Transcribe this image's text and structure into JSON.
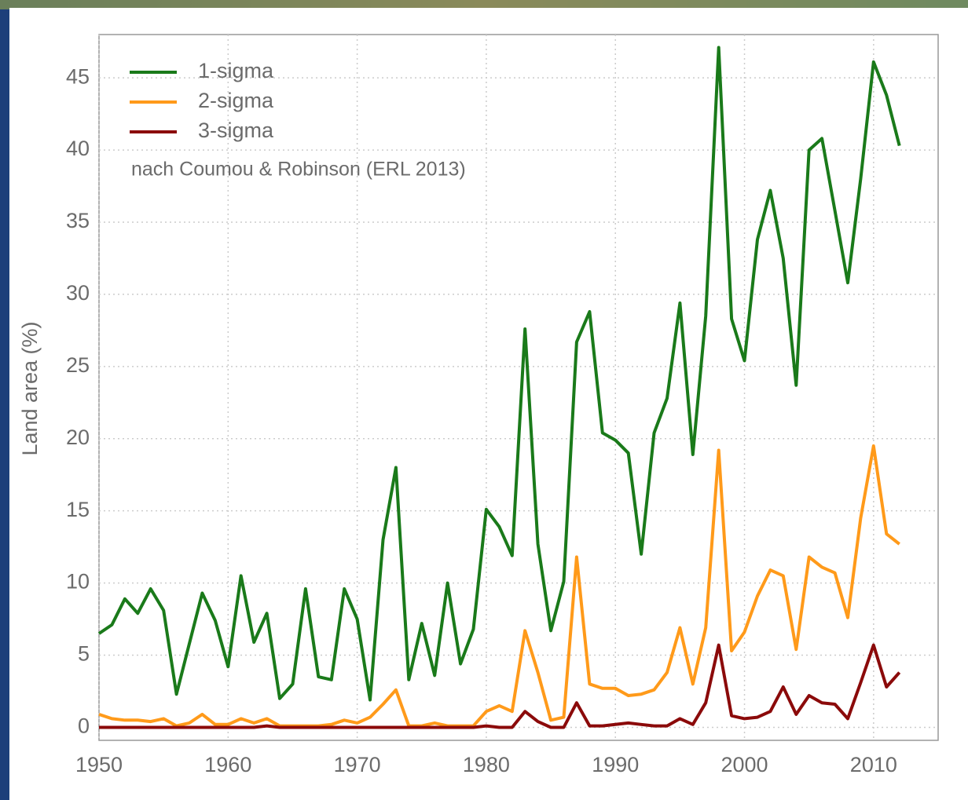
{
  "chart_data": {
    "type": "line",
    "annotation": "nach Coumou & Robinson (ERL 2013)",
    "ylabel": "Land area (%)",
    "x": [
      1950,
      1951,
      1952,
      1953,
      1954,
      1955,
      1956,
      1957,
      1958,
      1959,
      1960,
      1961,
      1962,
      1963,
      1964,
      1965,
      1966,
      1967,
      1968,
      1969,
      1970,
      1971,
      1972,
      1973,
      1974,
      1975,
      1976,
      1977,
      1978,
      1979,
      1980,
      1981,
      1982,
      1983,
      1984,
      1985,
      1986,
      1987,
      1988,
      1989,
      1990,
      1991,
      1992,
      1993,
      1994,
      1995,
      1996,
      1997,
      1998,
      1999,
      2000,
      2001,
      2002,
      2003,
      2004,
      2005,
      2006,
      2007,
      2008,
      2009,
      2010,
      2011,
      2012
    ],
    "series": [
      {
        "name": "1-sigma",
        "color": "#1a7a1a",
        "values": [
          6.5,
          7.1,
          8.9,
          7.9,
          9.6,
          8.1,
          2.3,
          5.8,
          9.3,
          7.4,
          4.2,
          10.5,
          5.9,
          7.9,
          2.0,
          3.0,
          9.6,
          3.5,
          3.3,
          9.6,
          7.5,
          1.9,
          13.0,
          18.0,
          3.3,
          7.2,
          3.6,
          10.0,
          4.4,
          6.8,
          15.1,
          13.9,
          11.9,
          27.6,
          12.7,
          6.7,
          10.1,
          26.7,
          28.8,
          20.4,
          19.9,
          19.0,
          12.0,
          20.4,
          22.8,
          29.4,
          18.9,
          28.5,
          47.1,
          28.3,
          25.4,
          33.8,
          37.2,
          32.5,
          23.7,
          40.0,
          40.8,
          35.8,
          30.8,
          38.0,
          46.1,
          43.8,
          40.3
        ]
      },
      {
        "name": "2-sigma",
        "color": "#ff9a1a",
        "values": [
          0.9,
          0.6,
          0.5,
          0.5,
          0.4,
          0.6,
          0.1,
          0.3,
          0.9,
          0.2,
          0.2,
          0.6,
          0.3,
          0.6,
          0.1,
          0.1,
          0.1,
          0.1,
          0.2,
          0.5,
          0.3,
          0.7,
          1.6,
          2.6,
          0.1,
          0.1,
          0.3,
          0.1,
          0.1,
          0.1,
          1.1,
          1.5,
          1.1,
          6.7,
          3.8,
          0.5,
          0.7,
          11.8,
          3.0,
          2.7,
          2.7,
          2.2,
          2.3,
          2.6,
          3.8,
          6.9,
          3.0,
          6.9,
          19.2,
          5.3,
          6.6,
          9.1,
          10.9,
          10.5,
          5.4,
          11.8,
          11.1,
          10.7,
          7.6,
          14.5,
          19.5,
          13.4,
          12.7
        ]
      },
      {
        "name": "3-sigma",
        "color": "#8b0a0a",
        "values": [
          0,
          0,
          0,
          0,
          0,
          0,
          0,
          0,
          0,
          0,
          0,
          0,
          0,
          0.1,
          0,
          0,
          0,
          0,
          0,
          0,
          0,
          0,
          0,
          0,
          0,
          0,
          0,
          0,
          0,
          0,
          0.1,
          0,
          0,
          1.1,
          0.4,
          0,
          0,
          1.7,
          0.1,
          0.1,
          0.2,
          0.3,
          0.2,
          0.1,
          0.1,
          0.6,
          0.2,
          1.7,
          5.7,
          0.8,
          0.6,
          0.7,
          1.1,
          2.8,
          0.9,
          2.2,
          1.7,
          1.6,
          0.6,
          3.1,
          5.7,
          2.8,
          3.8
        ]
      }
    ],
    "xlim": [
      1950,
      2015
    ],
    "xticks": [
      1950,
      1960,
      1970,
      1980,
      1990,
      2000,
      2010
    ],
    "ylim": [
      -0.9,
      48
    ],
    "yticks": [
      0,
      5,
      10,
      15,
      20,
      25,
      30,
      35,
      40,
      45
    ],
    "grid": true,
    "legend": "upper left"
  }
}
